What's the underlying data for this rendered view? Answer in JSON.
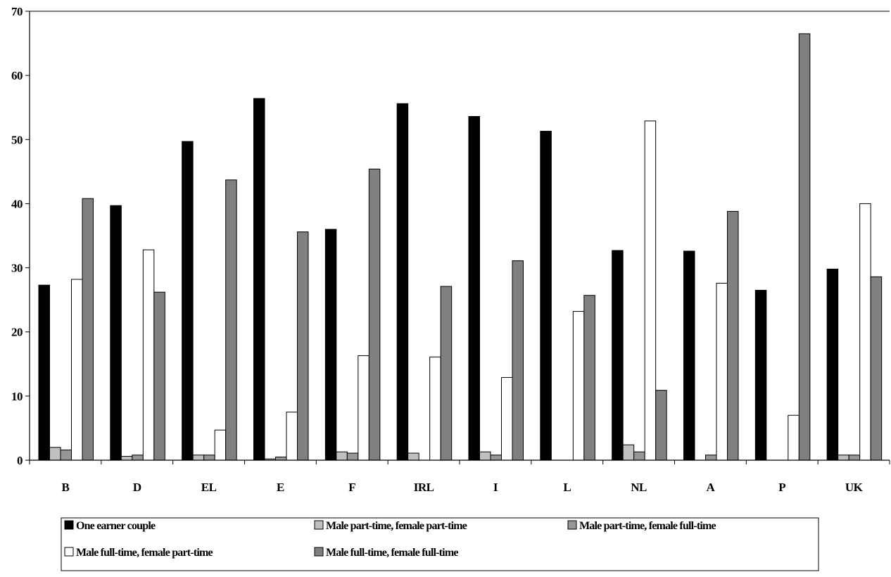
{
  "chart_data": {
    "type": "bar",
    "title": "",
    "xlabel": "",
    "ylabel": "",
    "ylim": [
      0,
      70
    ],
    "yticks": [
      0,
      10,
      20,
      30,
      40,
      50,
      60,
      70
    ],
    "grid": false,
    "legend_position": "bottom",
    "categories": [
      "B",
      "D",
      "EL",
      "E",
      "F",
      "IRL",
      "I",
      "L",
      "NL",
      "A",
      "P",
      "UK"
    ],
    "series": [
      {
        "name": "One earner couple",
        "color": "#000000",
        "values": [
          27.3,
          39.7,
          49.7,
          56.4,
          36.0,
          55.6,
          53.6,
          51.3,
          32.7,
          32.6,
          26.5,
          29.8
        ]
      },
      {
        "name": "Male part-time, female part-time",
        "color": "#c0c0c0",
        "values": [
          2.0,
          0.6,
          0.8,
          0.2,
          1.3,
          1.1,
          1.3,
          0,
          2.4,
          0,
          0,
          0.8
        ]
      },
      {
        "name": "Male part-time, female full-time",
        "color": "#969696",
        "values": [
          1.6,
          0.8,
          0.8,
          0.5,
          1.1,
          0,
          0.8,
          0,
          1.3,
          0.8,
          0,
          0.8
        ]
      },
      {
        "name": "Male full-time, female part-time",
        "color": "#ffffff",
        "values": [
          28.2,
          32.8,
          4.7,
          7.5,
          16.3,
          16.1,
          12.9,
          23.2,
          52.9,
          27.6,
          7.0,
          40.0
        ]
      },
      {
        "name": "Male full-time, female full-time",
        "color": "#808080",
        "values": [
          40.8,
          26.2,
          43.7,
          35.6,
          45.4,
          27.1,
          31.1,
          25.7,
          10.9,
          38.8,
          66.5,
          28.6
        ]
      }
    ]
  }
}
